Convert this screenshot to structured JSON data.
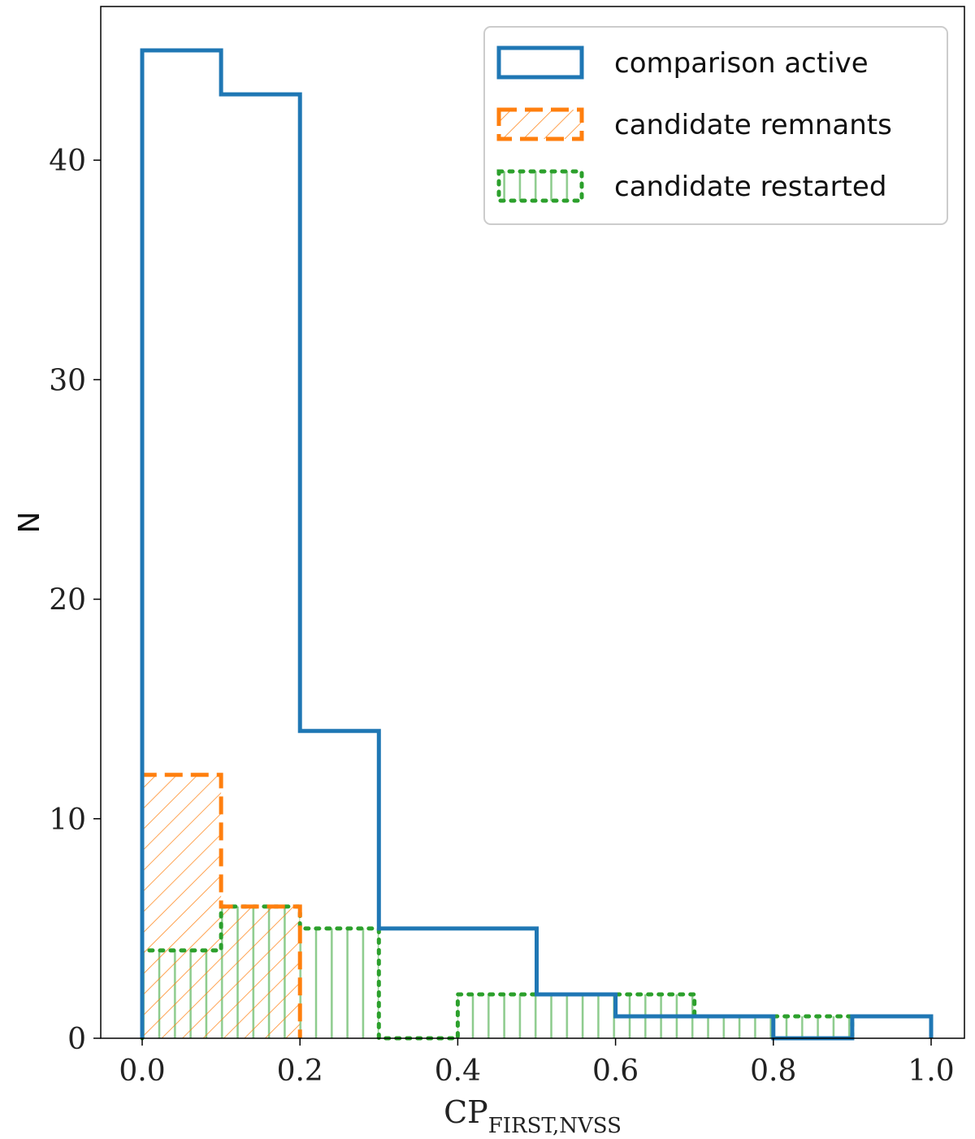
{
  "chart_data": {
    "type": "bar",
    "subtype": "step-histogram",
    "xlabel_main": "CP",
    "xlabel_sub": "FIRST,NVSS",
    "ylabel": "N",
    "xlim": [
      -0.05,
      1.04
    ],
    "ylim": [
      0,
      47
    ],
    "xticks": [
      0.0,
      0.2,
      0.4,
      0.6,
      0.8,
      1.0
    ],
    "xtick_labels": [
      "0.0",
      "0.2",
      "0.4",
      "0.6",
      "0.8",
      "1.0"
    ],
    "yticks": [
      0,
      10,
      20,
      30,
      40
    ],
    "ytick_labels": [
      "0",
      "10",
      "20",
      "30",
      "40"
    ],
    "bin_edges": [
      0.0,
      0.1,
      0.2,
      0.3,
      0.4,
      0.5,
      0.6,
      0.7,
      0.8,
      0.9,
      1.0
    ],
    "grid": false,
    "legend_position": "top-right",
    "series": [
      {
        "name": "comparison active",
        "values": [
          45,
          43,
          14,
          5,
          5,
          2,
          1,
          1,
          0,
          1
        ],
        "color": "#1f77b4",
        "style": "solid",
        "fill": "none"
      },
      {
        "name": "candidate remnants",
        "values": [
          12,
          6
        ],
        "bin_edges": [
          0.0,
          0.1,
          0.2
        ],
        "color": "#ff7f0e",
        "style": "dashed",
        "fill": "diagonal-hatch"
      },
      {
        "name": "candidate restarted",
        "values": [
          4,
          6,
          5,
          0,
          2,
          2,
          2,
          1,
          1
        ],
        "bin_edges": [
          0.0,
          0.1,
          0.2,
          0.3,
          0.4,
          0.5,
          0.6,
          0.7,
          0.8,
          0.9
        ],
        "color": "#2ca02c",
        "style": "dotted",
        "fill": "vertical-hatch"
      }
    ]
  }
}
